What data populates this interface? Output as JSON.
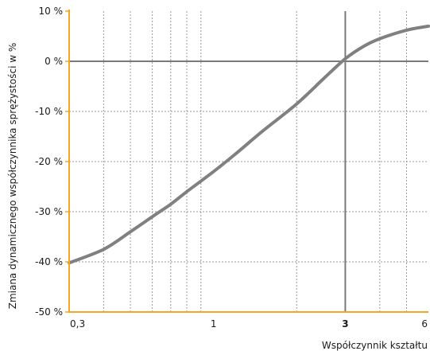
{
  "chart_data": {
    "type": "line",
    "title": "",
    "xlabel": "Współczynnik kształtu",
    "ylabel": "Zmiana dynamicznego współczynnika sprężystości w %",
    "x_scale": "log",
    "xlim": [
      0.3,
      6
    ],
    "ylim": [
      -50,
      10
    ],
    "x_ticks": [
      {
        "value": 0.3,
        "label": "0,3"
      },
      {
        "value": 1,
        "label": "1"
      },
      {
        "value": 3,
        "label": "3",
        "bold": true
      },
      {
        "value": 6,
        "label": "6"
      }
    ],
    "y_ticks": [
      {
        "value": 10,
        "label": "10 %"
      },
      {
        "value": 0,
        "label": "0 %"
      },
      {
        "value": -10,
        "label": "-10 %"
      },
      {
        "value": -20,
        "label": "-20 %"
      },
      {
        "value": -30,
        "label": "-30 %"
      },
      {
        "value": -40,
        "label": "-40 %"
      },
      {
        "value": -50,
        "label": "-50 %"
      }
    ],
    "x_minor_gridlines": [
      0.4,
      0.5,
      0.6,
      0.7,
      0.8,
      0.9,
      2,
      3,
      4,
      5
    ],
    "reference_lines": {
      "x": 3,
      "y": 0
    },
    "grid": true,
    "colors": {
      "axes": "#f5a623",
      "curve": "#808080",
      "grid": "#9a9a9a",
      "reference": "#7a7a7a"
    },
    "series": [
      {
        "x": [
          0.3,
          0.4,
          0.5,
          0.6,
          0.7,
          0.8,
          1.0,
          1.2,
          1.5,
          2.0,
          2.5,
          3.0,
          3.5,
          4.0,
          5.0,
          6.0
        ],
        "y": [
          -40.2,
          -37.5,
          -34.0,
          -31.0,
          -28.5,
          -26.0,
          -22.0,
          -18.5,
          -14.0,
          -8.5,
          -3.5,
          0.5,
          3.0,
          4.5,
          6.2,
          7.0
        ]
      }
    ]
  }
}
